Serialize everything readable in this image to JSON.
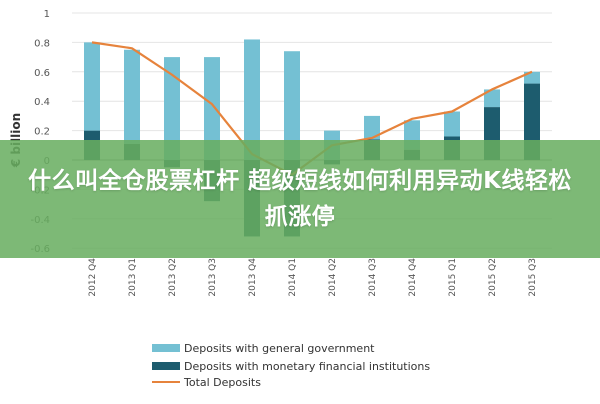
{
  "colors": {
    "general_government": "#74c0d3",
    "monetary_institutions": "#1d5c6e",
    "total_line": "#e6833c",
    "banner_bg": "#68ad60"
  },
  "banner": {
    "headline": "什么叫全仓股票杠杆 超级短线如何利用异动K线轻松抓涨停"
  },
  "chart_data": {
    "type": "bar",
    "ylabel": "€ billion",
    "ylim": [
      -0.7,
      1
    ],
    "yticks": [
      "1",
      "0.8",
      "0.6",
      "0.4",
      "0.2",
      "0",
      "-0.2",
      "-0.4",
      "-0.6"
    ],
    "categories": [
      "2012 Q4",
      "2013 Q1",
      "2013 Q2",
      "2013 Q3",
      "2013 Q4",
      "2014 Q1",
      "2014 Q2",
      "2014 Q3",
      "2014 Q4",
      "2015 Q1",
      "2015 Q2",
      "2015 Q3"
    ],
    "series": [
      {
        "name": "Deposits with general government",
        "values": [
          0.6,
          0.64,
          0.7,
          0.7,
          0.82,
          0.74,
          0.2,
          0.16,
          0.2,
          0.17,
          0.12,
          0.08
        ]
      },
      {
        "name": "Deposits with monetary financial institutions",
        "values": [
          0.2,
          0.11,
          -0.05,
          -0.28,
          -0.52,
          -0.52,
          -0.03,
          0.14,
          0.07,
          0.16,
          0.36,
          0.52
        ]
      },
      {
        "name": "Total Deposits",
        "values": [
          0.8,
          0.76,
          0.58,
          0.38,
          0.04,
          -0.1,
          0.1,
          0.15,
          0.28,
          0.33,
          0.48,
          0.6
        ]
      }
    ],
    "legend_position": "bottom-left"
  }
}
